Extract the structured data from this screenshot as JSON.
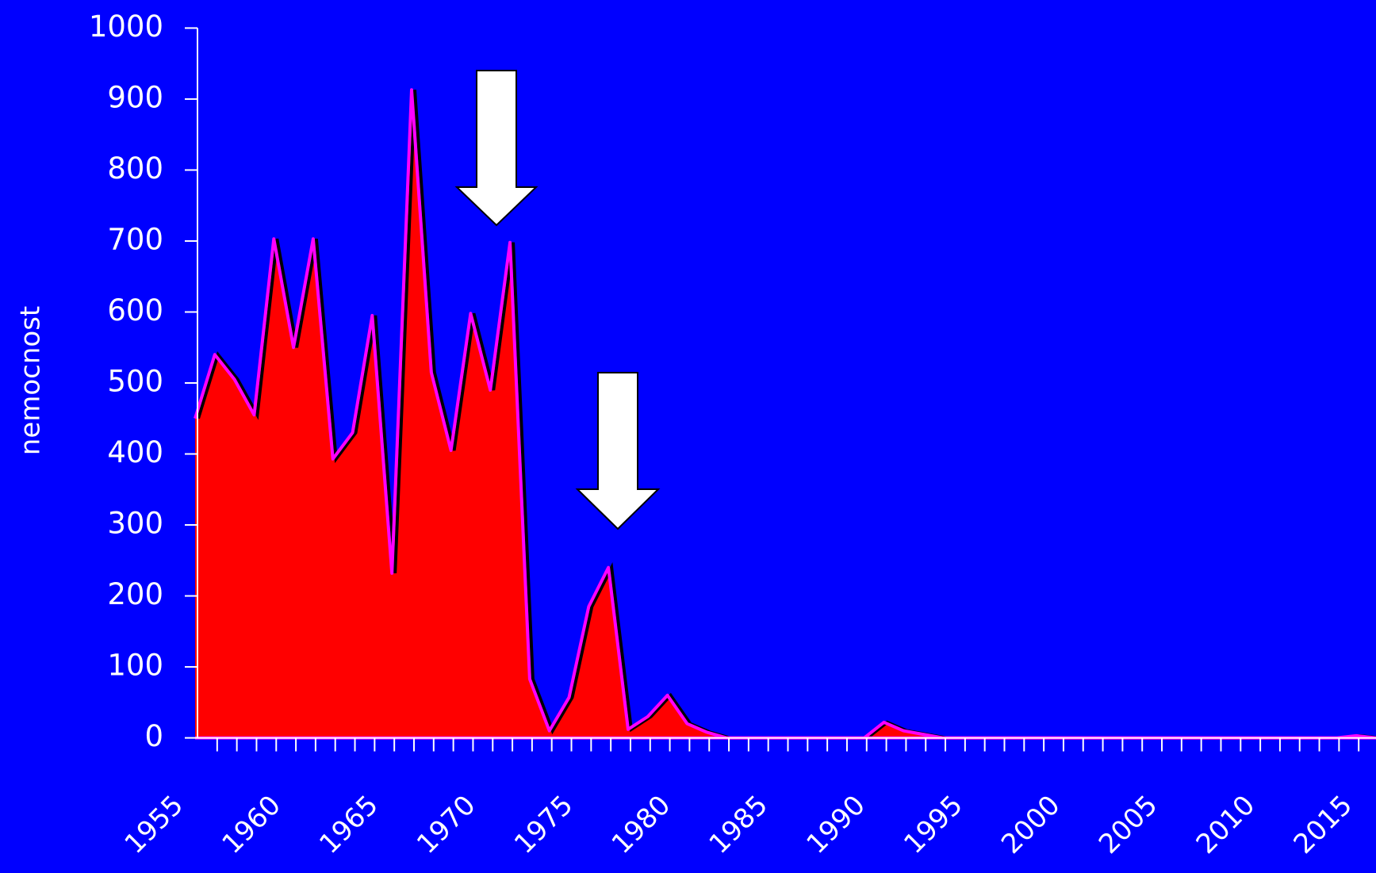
{
  "chart_data": {
    "type": "area",
    "ylabel": "nemocnost",
    "categories": [
      "1955",
      null,
      null,
      null,
      null,
      "1960",
      null,
      null,
      null,
      null,
      "1965",
      null,
      null,
      null,
      null,
      "1970",
      null,
      null,
      null,
      null,
      "1975",
      null,
      null,
      null,
      null,
      "1980",
      null,
      null,
      null,
      null,
      "1985",
      null,
      null,
      null,
      null,
      "1990",
      null,
      null,
      null,
      null,
      "1995",
      null,
      null,
      null,
      null,
      "2000",
      null,
      null,
      null,
      null,
      "2005",
      null,
      null,
      null,
      null,
      "2010",
      null,
      null,
      null,
      null,
      "2015"
    ],
    "values": [
      450,
      540,
      505,
      455,
      703,
      550,
      703,
      393,
      430,
      595,
      232,
      913,
      515,
      405,
      598,
      490,
      698,
      83,
      10,
      57,
      185,
      240,
      12,
      30,
      60,
      20,
      8,
      0,
      0,
      0,
      0,
      0,
      0,
      0,
      0,
      22,
      10,
      5,
      0,
      0,
      0,
      0,
      0,
      0,
      0,
      0,
      0,
      0,
      0,
      0,
      0,
      0,
      0,
      0,
      0,
      0,
      0,
      0,
      0,
      3,
      0
    ],
    "color": "#ff0000",
    "line_color": "#ff00ff",
    "ylim": [
      0,
      1000
    ],
    "yticks": [
      0,
      100,
      200,
      300,
      400,
      500,
      600,
      700,
      800,
      900,
      1000
    ]
  }
}
